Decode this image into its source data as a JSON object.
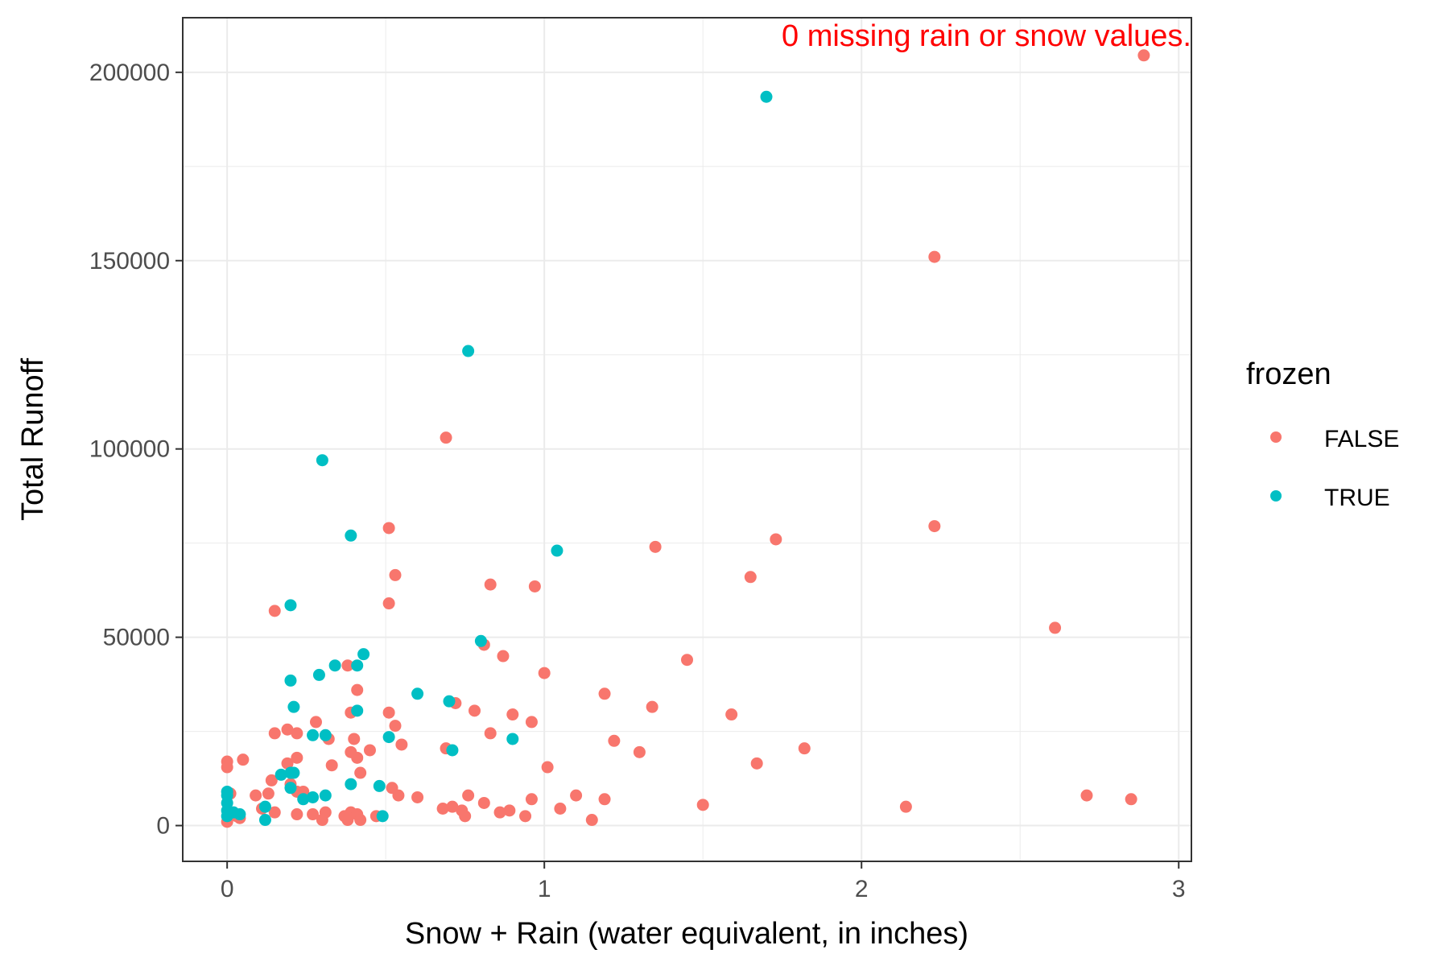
{
  "chart_data": {
    "type": "scatter",
    "xlabel": "Snow + Rain (water equivalent, in inches)",
    "ylabel": "Total Runoff",
    "xlim": [
      -0.14,
      3.04
    ],
    "ylim": [
      -9500,
      214500
    ],
    "x_ticks": [
      0,
      1,
      2,
      3
    ],
    "y_ticks": [
      0,
      50000,
      100000,
      150000,
      200000
    ],
    "x_tick_labels": [
      "0",
      "1",
      "2",
      "3"
    ],
    "y_tick_labels": [
      "0",
      "50000",
      "100000",
      "150000",
      "200000"
    ],
    "grid": true,
    "annotation": {
      "text": "0 missing rain or snow values.",
      "color": "#ff0000",
      "x": 3.04,
      "y": 210000
    },
    "legend": {
      "title": "frozen",
      "position": "right"
    },
    "series": [
      {
        "name": "FALSE",
        "color": "#f8766d",
        "points": [
          [
            2.89,
            204500
          ],
          [
            2.23,
            151000
          ],
          [
            0.69,
            103000
          ],
          [
            2.23,
            79500
          ],
          [
            0.51,
            79000
          ],
          [
            1.73,
            76000
          ],
          [
            1.35,
            74000
          ],
          [
            0.53,
            66500
          ],
          [
            1.65,
            66000
          ],
          [
            0.83,
            64000
          ],
          [
            0.97,
            63500
          ],
          [
            0.51,
            59000
          ],
          [
            0.15,
            57000
          ],
          [
            2.61,
            52500
          ],
          [
            0.81,
            48000
          ],
          [
            0.87,
            45000
          ],
          [
            1.45,
            44000
          ],
          [
            0.38,
            42500
          ],
          [
            1.0,
            40500
          ],
          [
            0.41,
            36000
          ],
          [
            1.19,
            35000
          ],
          [
            0.72,
            32500
          ],
          [
            1.34,
            31500
          ],
          [
            0.78,
            30500
          ],
          [
            0.39,
            30000
          ],
          [
            0.51,
            30000
          ],
          [
            1.59,
            29500
          ],
          [
            0.9,
            29500
          ],
          [
            0.96,
            27500
          ],
          [
            0.28,
            27500
          ],
          [
            0.53,
            26500
          ],
          [
            0.19,
            25500
          ],
          [
            0.15,
            24500
          ],
          [
            0.22,
            24500
          ],
          [
            0.83,
            24500
          ],
          [
            0.32,
            23000
          ],
          [
            0.4,
            23000
          ],
          [
            1.22,
            22500
          ],
          [
            0.55,
            21500
          ],
          [
            0.69,
            20500
          ],
          [
            1.82,
            20500
          ],
          [
            0.45,
            20000
          ],
          [
            0.39,
            19500
          ],
          [
            1.3,
            19500
          ],
          [
            0.41,
            18000
          ],
          [
            0.22,
            18000
          ],
          [
            0.05,
            17500
          ],
          [
            0.0,
            17000
          ],
          [
            0.19,
            16500
          ],
          [
            0.0,
            15500
          ],
          [
            1.67,
            16500
          ],
          [
            0.33,
            16000
          ],
          [
            1.01,
            15500
          ],
          [
            0.42,
            14000
          ],
          [
            0.14,
            12000
          ],
          [
            0.2,
            11000
          ],
          [
            0.52,
            10000
          ],
          [
            0.22,
            9000
          ],
          [
            0.24,
            9000
          ],
          [
            0.13,
            8500
          ],
          [
            0.54,
            8000
          ],
          [
            0.09,
            8000
          ],
          [
            1.1,
            8000
          ],
          [
            2.71,
            8000
          ],
          [
            0.6,
            7500
          ],
          [
            0.76,
            8000
          ],
          [
            0.96,
            7000
          ],
          [
            1.19,
            7000
          ],
          [
            2.85,
            7000
          ],
          [
            0.81,
            6000
          ],
          [
            1.5,
            5500
          ],
          [
            2.14,
            5000
          ],
          [
            0.68,
            4500
          ],
          [
            0.71,
            5000
          ],
          [
            0.74,
            4000
          ],
          [
            1.05,
            4500
          ],
          [
            0.11,
            4500
          ],
          [
            0.15,
            3500
          ],
          [
            0.89,
            4000
          ],
          [
            0.86,
            3500
          ],
          [
            0.22,
            3000
          ],
          [
            0.27,
            3000
          ],
          [
            0.31,
            3500
          ],
          [
            0.37,
            2500
          ],
          [
            0.39,
            3500
          ],
          [
            0.41,
            3000
          ],
          [
            0.47,
            2500
          ],
          [
            0.75,
            2500
          ],
          [
            0.94,
            2500
          ],
          [
            1.15,
            1500
          ],
          [
            0.04,
            2000
          ],
          [
            0.0,
            1000
          ],
          [
            0.3,
            1500
          ],
          [
            0.38,
            1500
          ],
          [
            0.42,
            1500
          ],
          [
            0.01,
            8500
          ],
          [
            0.03,
            2500
          ]
        ]
      },
      {
        "name": "TRUE",
        "color": "#00bfc4",
        "points": [
          [
            1.7,
            193500
          ],
          [
            0.76,
            126000
          ],
          [
            0.3,
            97000
          ],
          [
            0.39,
            77000
          ],
          [
            1.04,
            73000
          ],
          [
            0.2,
            58500
          ],
          [
            0.8,
            49000
          ],
          [
            0.43,
            45500
          ],
          [
            0.34,
            42500
          ],
          [
            0.41,
            42500
          ],
          [
            0.29,
            40000
          ],
          [
            0.2,
            38500
          ],
          [
            0.6,
            35000
          ],
          [
            0.7,
            33000
          ],
          [
            0.21,
            31500
          ],
          [
            0.41,
            30500
          ],
          [
            0.27,
            24000
          ],
          [
            0.31,
            24000
          ],
          [
            0.51,
            23500
          ],
          [
            0.9,
            23000
          ],
          [
            0.71,
            20000
          ],
          [
            0.2,
            14000
          ],
          [
            0.21,
            14000
          ],
          [
            0.17,
            13500
          ],
          [
            0.39,
            11000
          ],
          [
            0.48,
            10500
          ],
          [
            0.2,
            10000
          ],
          [
            0.0,
            9000
          ],
          [
            0.0,
            8000
          ],
          [
            0.31,
            8000
          ],
          [
            0.27,
            7500
          ],
          [
            0.24,
            7000
          ],
          [
            0.0,
            6000
          ],
          [
            0.12,
            5000
          ],
          [
            0.0,
            4000
          ],
          [
            0.02,
            3500
          ],
          [
            0.04,
            3000
          ],
          [
            0.0,
            2500
          ],
          [
            0.49,
            2500
          ],
          [
            0.12,
            1500
          ]
        ]
      }
    ]
  }
}
